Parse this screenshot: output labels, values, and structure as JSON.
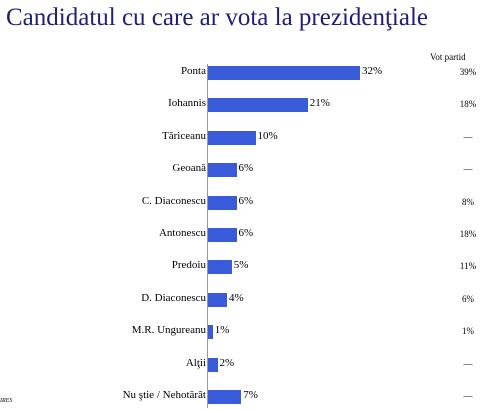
{
  "chart_data": {
    "type": "bar",
    "title": "Candidatul cu care ar vota la prezidenţiale",
    "categories": [
      "Ponta",
      "Iohannis",
      "Tăriceanu",
      "Geoană",
      "C. Diaconescu",
      "Antonescu",
      "Predoiu",
      "D. Diaconescu",
      "M.R. Ungureanu",
      "Alţii",
      "Nu ştie / Nehotărât"
    ],
    "series": [
      {
        "values": [
          32,
          21,
          10,
          6,
          6,
          6,
          5,
          4,
          1,
          2,
          7
        ]
      }
    ],
    "value_labels": [
      "32%",
      "21%",
      "10%",
      "6%",
      "6%",
      "6%",
      "5%",
      "4%",
      "1%",
      "2%",
      "7%"
    ],
    "side_column": {
      "header": "Vot partid",
      "values": [
        "39%",
        "18%",
        "—",
        "—",
        "8%",
        "18%",
        "11%",
        "6%",
        "1%",
        "—",
        "—"
      ]
    },
    "bar_color": "#3a5bd9",
    "xlim": [
      0,
      40
    ]
  },
  "source_label": "IRES"
}
